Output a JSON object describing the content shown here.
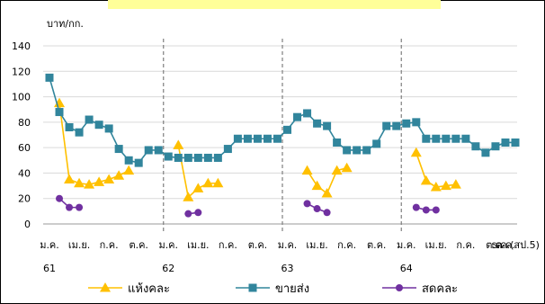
{
  "chart_data": {
    "type": "line",
    "title": "",
    "ylabel": "บาท/กก.",
    "ylim": [
      0,
      140
    ],
    "yticks": [
      0,
      20,
      40,
      60,
      80,
      100,
      120,
      140
    ],
    "grid": true,
    "legend_position": "bottom",
    "x_labels": [
      {
        "i": 0,
        "label": "ม.ค."
      },
      {
        "i": 3,
        "label": "เม.ย."
      },
      {
        "i": 6,
        "label": "ก.ค."
      },
      {
        "i": 9,
        "label": "ต.ค."
      },
      {
        "i": 12,
        "label": "ม.ค."
      },
      {
        "i": 15,
        "label": "เม.ย."
      },
      {
        "i": 18,
        "label": "ก.ค."
      },
      {
        "i": 21,
        "label": "ต.ค."
      },
      {
        "i": 24,
        "label": "ม.ค."
      },
      {
        "i": 27,
        "label": "เม.ย."
      },
      {
        "i": 30,
        "label": "ก.ค."
      },
      {
        "i": 33,
        "label": "ต.ค."
      },
      {
        "i": 36,
        "label": "ม.ค."
      },
      {
        "i": 39,
        "label": "เม.ย."
      },
      {
        "i": 42,
        "label": "ก.ค."
      },
      {
        "i": 45,
        "label": "ต.ค."
      },
      {
        "i": 46,
        "label": "ต.ค."
      },
      {
        "i": 47,
        "label": "ธ.ค.(สป.5)"
      }
    ],
    "year_labels": [
      {
        "i": 0,
        "label": "61"
      },
      {
        "i": 12,
        "label": "62"
      },
      {
        "i": 24,
        "label": "63"
      },
      {
        "i": 36,
        "label": "64"
      }
    ],
    "year_separators": [
      11.5,
      23.5,
      35.5
    ],
    "n_points": 48,
    "series": [
      {
        "name": "แห้งคละ",
        "color": "#ffc000",
        "marker": "triangle",
        "values": [
          null,
          95,
          35,
          32,
          31,
          33,
          35,
          38,
          42,
          null,
          null,
          null,
          null,
          62,
          21,
          28,
          32,
          32,
          null,
          null,
          null,
          null,
          null,
          null,
          null,
          null,
          42,
          30,
          24,
          42,
          44,
          null,
          null,
          null,
          null,
          null,
          null,
          56,
          34,
          29,
          30,
          31,
          null,
          null,
          null,
          null,
          null,
          null
        ]
      },
      {
        "name": "ขายส่ง",
        "color": "#31859c",
        "marker": "square",
        "values": [
          115,
          88,
          76,
          72,
          82,
          78,
          75,
          59,
          50,
          48,
          58,
          58,
          53,
          52,
          52,
          52,
          52,
          52,
          59,
          67,
          67,
          67,
          67,
          67,
          74,
          84,
          87,
          79,
          77,
          64,
          58,
          58,
          58,
          63,
          77,
          77,
          79,
          80,
          67,
          67,
          67,
          67,
          67,
          61,
          56,
          61,
          64,
          64
        ]
      },
      {
        "name": "สดคละ",
        "color": "#7030a0",
        "marker": "circle",
        "values": [
          null,
          20,
          13,
          13,
          null,
          null,
          null,
          null,
          null,
          null,
          null,
          null,
          null,
          null,
          8,
          9,
          null,
          null,
          null,
          null,
          null,
          null,
          null,
          null,
          null,
          null,
          16,
          12,
          9,
          null,
          null,
          null,
          null,
          null,
          null,
          null,
          null,
          13,
          11,
          11,
          null,
          null,
          null,
          null,
          null,
          null,
          null,
          null
        ]
      }
    ]
  }
}
